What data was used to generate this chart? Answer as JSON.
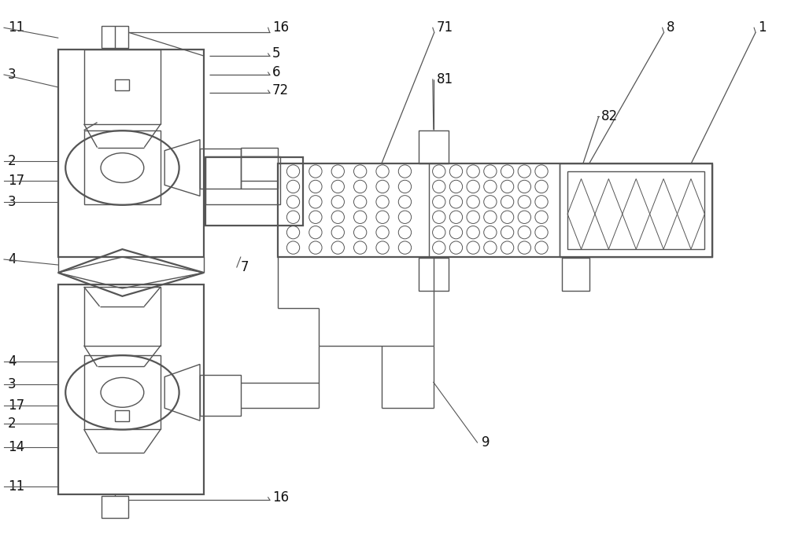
{
  "bg": "#ffffff",
  "lc": "#555555",
  "lw": 1.0,
  "lw2": 1.6,
  "fs": 12,
  "label_color": "#111111"
}
